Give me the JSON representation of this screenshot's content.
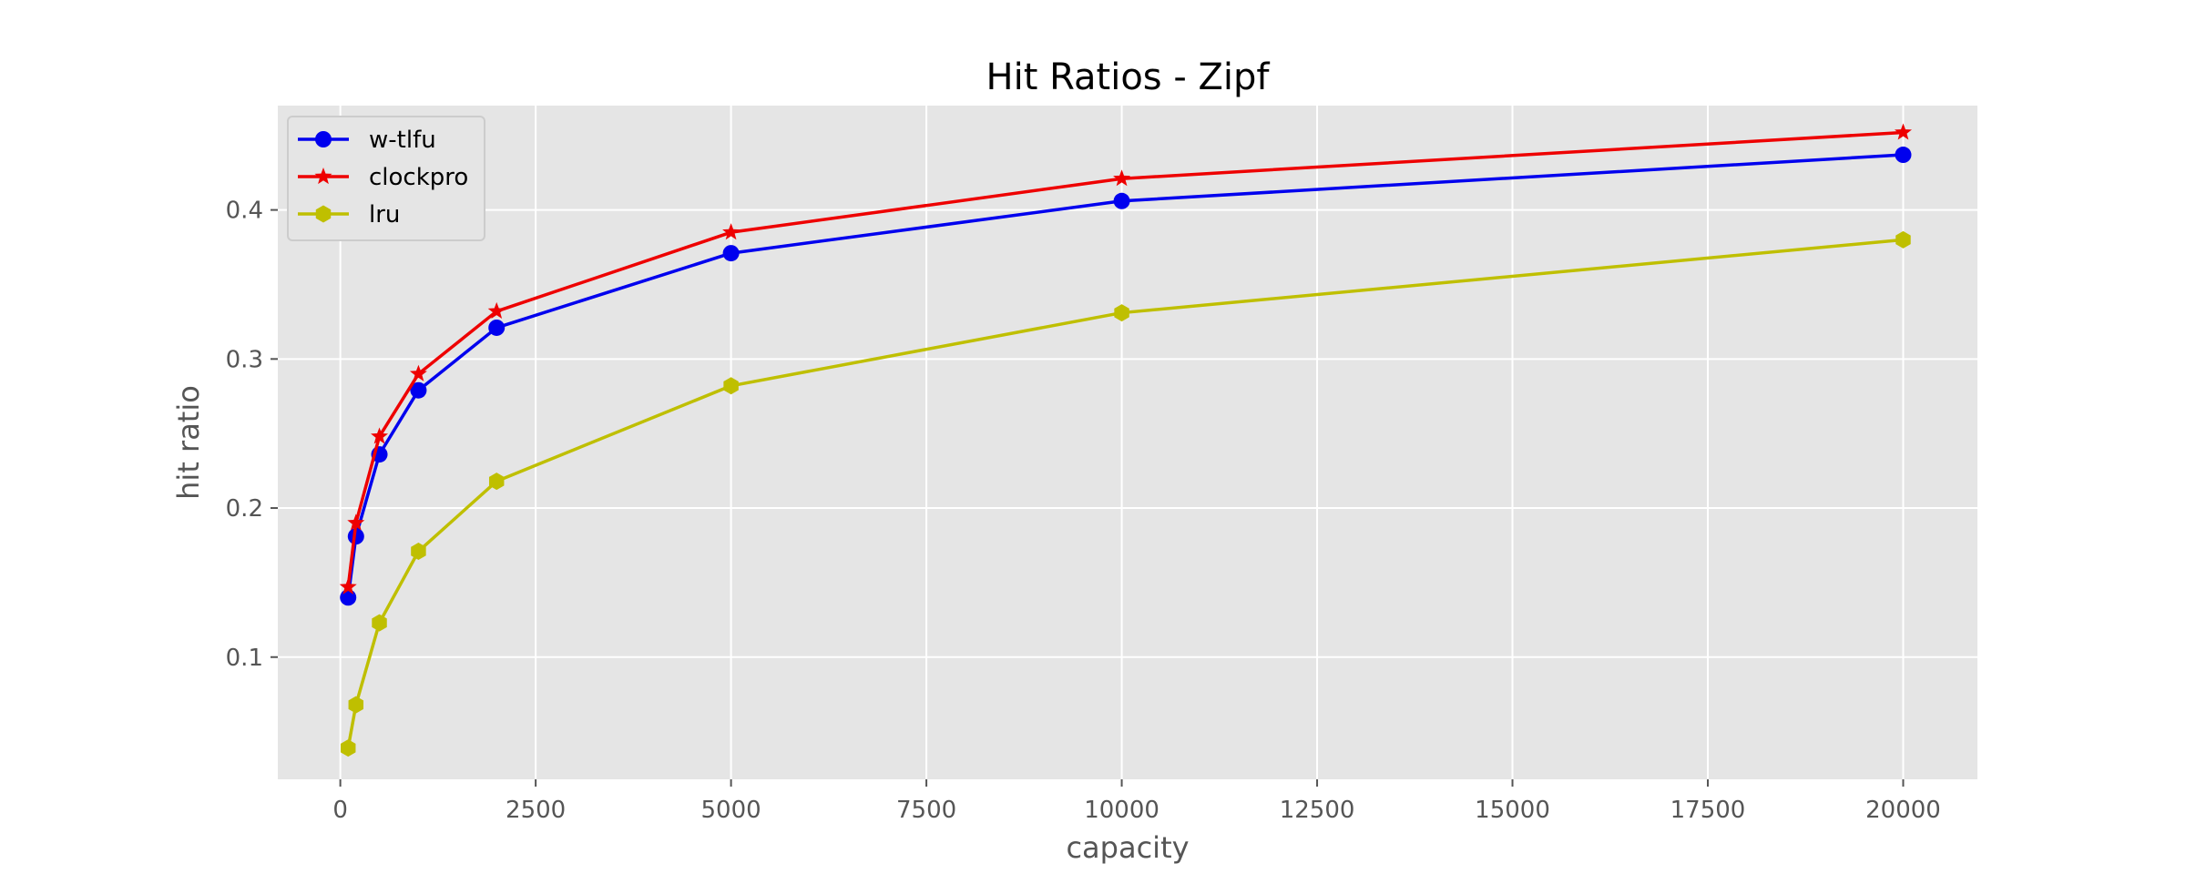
{
  "chart_data": {
    "type": "line",
    "title": "Hit Ratios - Zipf",
    "xlabel": "capacity",
    "ylabel": "hit ratio",
    "xlim": [
      -800,
      20950
    ],
    "ylim": [
      0.018,
      0.47
    ],
    "xticks": [
      0,
      2500,
      5000,
      7500,
      10000,
      12500,
      15000,
      17500,
      20000
    ],
    "yticks": [
      0.1,
      0.2,
      0.3,
      0.4
    ],
    "ytick_labels": [
      "0.1",
      "0.2",
      "0.3",
      "0.4"
    ],
    "grid": true,
    "legend_position": "top-left",
    "x": [
      100,
      200,
      500,
      1000,
      2000,
      5000,
      10000,
      20000
    ],
    "series": [
      {
        "name": "w-tlfu",
        "color": "#0000ee",
        "marker": "circle",
        "values": [
          0.14,
          0.181,
          0.236,
          0.279,
          0.321,
          0.371,
          0.406,
          0.437
        ]
      },
      {
        "name": "clockpro",
        "color": "#ee0000",
        "marker": "star",
        "values": [
          0.147,
          0.19,
          0.248,
          0.29,
          0.332,
          0.385,
          0.421,
          0.452
        ]
      },
      {
        "name": "lru",
        "color": "#bfbf00",
        "marker": "hexagon",
        "values": [
          0.039,
          0.068,
          0.123,
          0.171,
          0.218,
          0.282,
          0.331,
          0.38
        ]
      }
    ]
  }
}
